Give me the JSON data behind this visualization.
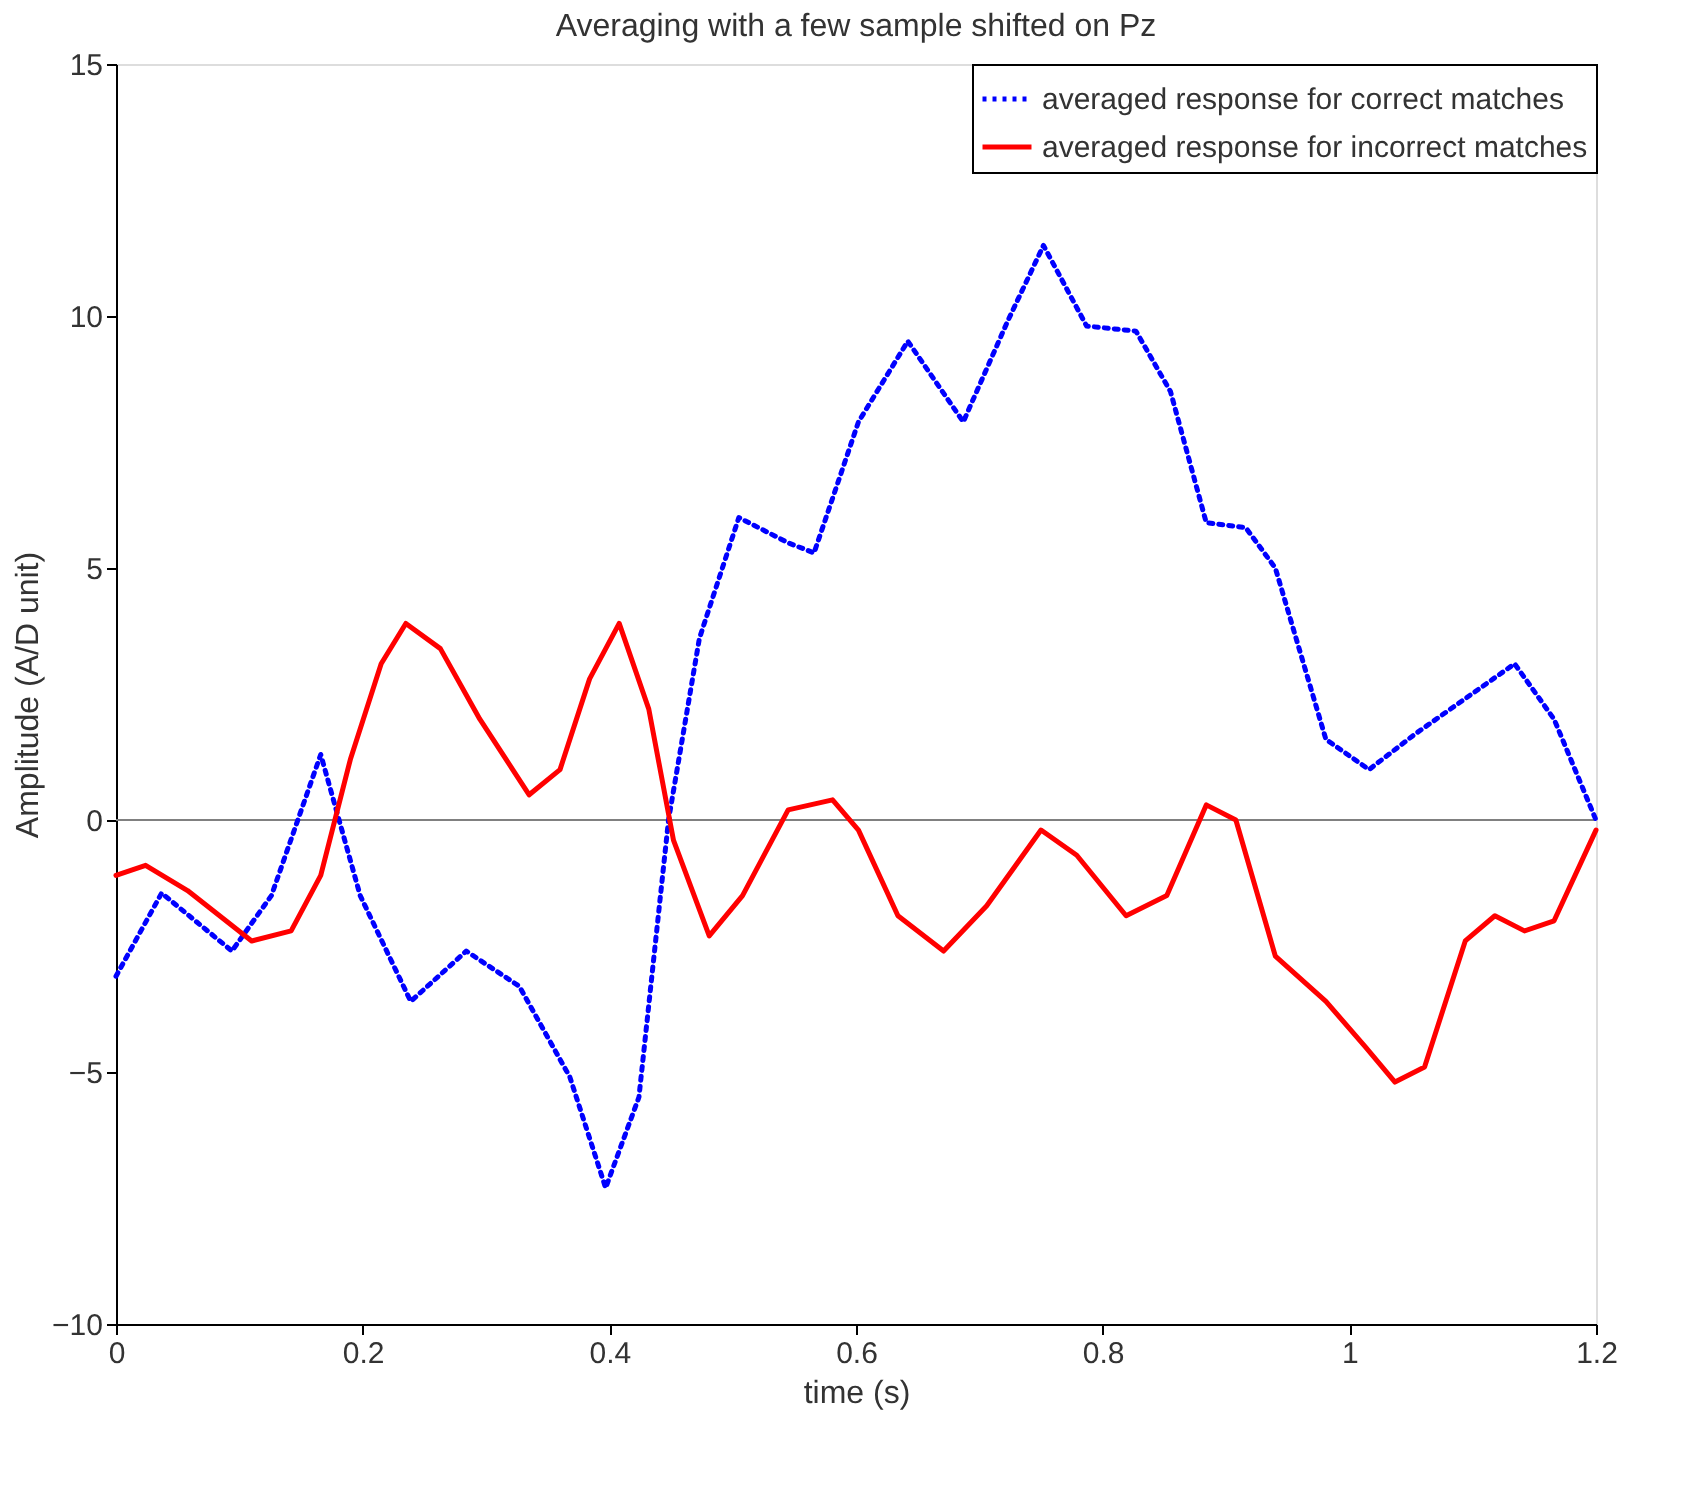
{
  "chart_data": {
    "type": "line",
    "title": "Averaging with a few sample shifted on Pz",
    "xlabel": "time (s)",
    "ylabel": "Amplitude  (A/D unit)",
    "xlim": [
      0,
      1.2
    ],
    "xticks": [
      0,
      0.2,
      0.4,
      0.6,
      0.8,
      1,
      1.2
    ],
    "ylim": [
      -10,
      15
    ],
    "yticks": [
      -10,
      -5,
      0,
      5,
      10,
      15
    ],
    "grid": false,
    "legend": "top right",
    "marker": "none",
    "ref_lines": [
      {
        "axis": "y",
        "value": 0,
        "color": "#808080",
        "line_style": "solid"
      }
    ],
    "series": [
      {
        "name": "averaged response for correct matches",
        "color": "#0000ff",
        "line_style": "dotted",
        "x": [
          0,
          0.037,
          0.094,
          0.126,
          0.166,
          0.198,
          0.239,
          0.284,
          0.327,
          0.368,
          0.397,
          0.424,
          0.448,
          0.473,
          0.505,
          0.545,
          0.566,
          0.602,
          0.642,
          0.687,
          0.723,
          0.752,
          0.787,
          0.827,
          0.855,
          0.884,
          0.916,
          0.94,
          0.981,
          1.016,
          1.053,
          1.134,
          1.166,
          1.2
        ],
        "values": [
          -3.1,
          -1.45,
          -2.6,
          -1.5,
          1.3,
          -1.5,
          -3.6,
          -2.6,
          -3.3,
          -5.1,
          -7.3,
          -5.5,
          0,
          3.6,
          6.0,
          5.5,
          5.3,
          7.9,
          9.5,
          7.9,
          9.9,
          11.4,
          9.8,
          9.7,
          8.5,
          5.9,
          5.8,
          5.0,
          1.6,
          1.0,
          1.7,
          3.1,
          2.0,
          0
        ]
      },
      {
        "name": "averaged response for incorrect matches",
        "color": "#ff0000",
        "line_style": "solid",
        "x": [
          0,
          0.024,
          0.058,
          0.11,
          0.142,
          0.166,
          0.19,
          0.215,
          0.235,
          0.263,
          0.295,
          0.335,
          0.36,
          0.384,
          0.408,
          0.432,
          0.452,
          0.481,
          0.508,
          0.545,
          0.581,
          0.602,
          0.634,
          0.671,
          0.706,
          0.75,
          0.779,
          0.819,
          0.852,
          0.884,
          0.908,
          0.94,
          0.981,
          1.013,
          1.037,
          1.061,
          1.094,
          1.118,
          1.142,
          1.166,
          1.2
        ],
        "values": [
          -1.1,
          -0.9,
          -1.4,
          -2.4,
          -2.2,
          -1.1,
          1.2,
          3.1,
          3.9,
          3.4,
          2.0,
          0.5,
          1.0,
          2.8,
          3.9,
          2.2,
          -0.4,
          -2.3,
          -1.5,
          0.2,
          0.4,
          -0.2,
          -1.9,
          -2.6,
          -1.7,
          -0.2,
          -0.7,
          -1.9,
          -1.5,
          0.3,
          0,
          -2.7,
          -3.6,
          -4.5,
          -5.2,
          -4.9,
          -2.4,
          -1.9,
          -2.2,
          -2.0,
          -0.2
        ]
      }
    ]
  }
}
